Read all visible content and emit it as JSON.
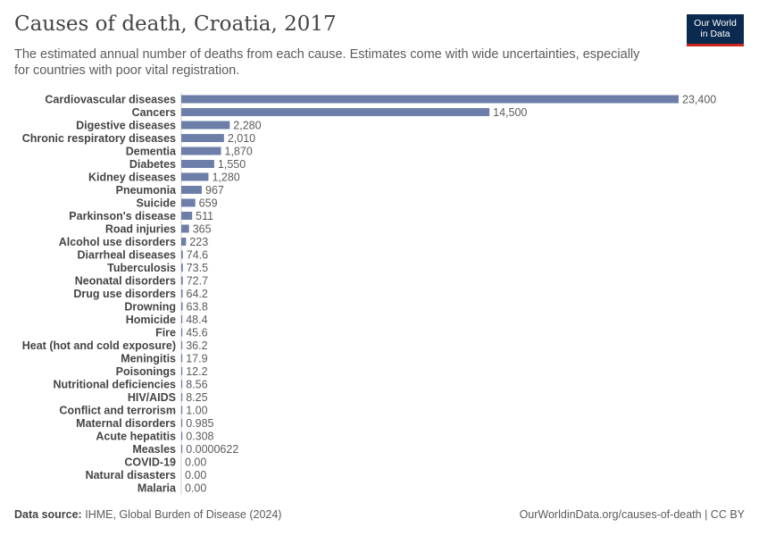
{
  "header": {
    "title": "Causes of death, Croatia, 2017",
    "subtitle": "The estimated annual number of deaths from each cause. Estimates come with wide uncertainties, especially for countries with poor vital registration.",
    "logo_line1": "Our World",
    "logo_line2": "in Data"
  },
  "footer": {
    "source_label": "Data source:",
    "source_text": "IHME, Global Burden of Disease (2024)",
    "url_text": "OurWorldinData.org/causes-of-death | CC BY"
  },
  "colors": {
    "bar": "#6d7fa8"
  },
  "chart_data": {
    "type": "bar",
    "orientation": "horizontal",
    "title": "Causes of death, Croatia, 2017",
    "xlim": [
      0,
      23400
    ],
    "categories": [
      "Cardiovascular diseases",
      "Cancers",
      "Digestive diseases",
      "Chronic respiratory diseases",
      "Dementia",
      "Diabetes",
      "Kidney diseases",
      "Pneumonia",
      "Suicide",
      "Parkinson's disease",
      "Road injuries",
      "Alcohol use disorders",
      "Diarrheal diseases",
      "Tuberculosis",
      "Neonatal disorders",
      "Drug use disorders",
      "Drowning",
      "Homicide",
      "Fire",
      "Heat (hot and cold exposure)",
      "Meningitis",
      "Poisonings",
      "Nutritional deficiencies",
      "HIV/AIDS",
      "Conflict and terrorism",
      "Maternal disorders",
      "Acute hepatitis",
      "Measles",
      "COVID-19",
      "Natural disasters",
      "Malaria"
    ],
    "values": [
      23400,
      14500,
      2280,
      2010,
      1870,
      1550,
      1280,
      967,
      659,
      511,
      365,
      223,
      74.6,
      73.5,
      72.7,
      64.2,
      63.8,
      48.4,
      45.6,
      36.2,
      17.9,
      12.2,
      8.56,
      8.25,
      1.0,
      0.985,
      0.308,
      6.22e-05,
      0,
      0,
      0
    ],
    "value_labels": [
      "23,400",
      "14,500",
      "2,280",
      "2,010",
      "1,870",
      "1,550",
      "1,280",
      "967",
      "659",
      "511",
      "365",
      "223",
      "74.6",
      "73.5",
      "72.7",
      "64.2",
      "63.8",
      "48.4",
      "45.6",
      "36.2",
      "17.9",
      "12.2",
      "8.56",
      "8.25",
      "1.00",
      "0.985",
      "0.308",
      "0.0000622",
      "0.00",
      "0.00",
      "0.00"
    ]
  }
}
